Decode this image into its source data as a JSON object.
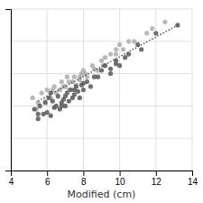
{
  "chart_data": {
    "type": "scatter",
    "xlabel": "Modified (cm)",
    "xlim": [
      4,
      14
    ],
    "ylim": [
      4,
      14
    ],
    "xticks": [
      4,
      6,
      8,
      10,
      12,
      14
    ],
    "yticks": [
      4,
      6,
      8,
      10,
      12,
      14
    ],
    "tick_labels": "x",
    "grid": true,
    "series": [
      {
        "color": "#b0b0b0",
        "marker": "circle",
        "x": [
          5.2,
          5.4,
          5.7,
          5.9,
          6.0,
          6.2,
          6.4,
          6.5,
          6.7,
          6.8,
          7.0,
          7.1,
          7.2,
          7.4,
          7.5,
          7.6,
          7.8,
          7.9,
          8.0,
          8.2,
          8.5,
          8.8,
          9.0,
          9.2,
          9.5,
          9.8,
          10.0,
          10.5,
          11.5,
          12.5,
          5.5,
          6.3,
          7.2,
          8.1,
          9.1,
          10.2,
          8.6,
          7.8,
          6.9,
          9.8,
          10.8,
          11.8
        ],
        "values": [
          8.5,
          7.8,
          8.8,
          8.3,
          9.0,
          8.5,
          9.2,
          8.8,
          9.0,
          9.5,
          9.2,
          9.8,
          9.0,
          9.5,
          9.8,
          9.3,
          9.8,
          10.0,
          10.2,
          9.8,
          10.5,
          10.2,
          10.8,
          11.0,
          11.2,
          11.5,
          11.8,
          12.0,
          12.5,
          13.2,
          8.2,
          9.0,
          9.5,
          10.0,
          10.5,
          11.5,
          10.3,
          9.6,
          9.2,
          11.2,
          12.0,
          12.8
        ]
      },
      {
        "color": "#606060",
        "marker": "circle",
        "x": [
          5.3,
          5.5,
          5.6,
          5.8,
          5.9,
          6.0,
          6.1,
          6.2,
          6.3,
          6.4,
          6.5,
          6.6,
          6.7,
          6.8,
          6.9,
          7.0,
          7.1,
          7.2,
          7.3,
          7.4,
          7.5,
          7.6,
          7.7,
          7.8,
          7.9,
          8.0,
          8.2,
          8.4,
          8.6,
          9.0,
          9.2,
          9.5,
          9.8,
          10.0,
          10.5,
          11.2,
          12.0,
          13.2,
          6.2,
          7.0,
          8.0,
          9.5,
          10.3,
          5.5,
          6.8,
          7.5,
          8.8,
          9.8,
          11.0
        ],
        "values": [
          7.8,
          7.2,
          8.0,
          7.5,
          8.2,
          7.6,
          8.5,
          7.4,
          8.3,
          7.9,
          8.0,
          8.6,
          7.8,
          8.2,
          8.4,
          8.0,
          8.8,
          8.3,
          9.0,
          8.5,
          8.7,
          9.2,
          8.9,
          8.5,
          9.3,
          9.0,
          9.5,
          9.2,
          9.8,
          10.2,
          10.5,
          10.0,
          10.8,
          10.5,
          11.2,
          11.5,
          12.5,
          13.0,
          8.8,
          8.6,
          9.4,
          10.3,
          11.0,
          7.5,
          8.0,
          9.0,
          9.8,
          10.6,
          11.8
        ]
      },
      {
        "type": "line",
        "color": "#555555",
        "line_style": "dotted",
        "x": [
          5.5,
          13.2
        ],
        "values": [
          8.3,
          13.0
        ]
      }
    ]
  }
}
